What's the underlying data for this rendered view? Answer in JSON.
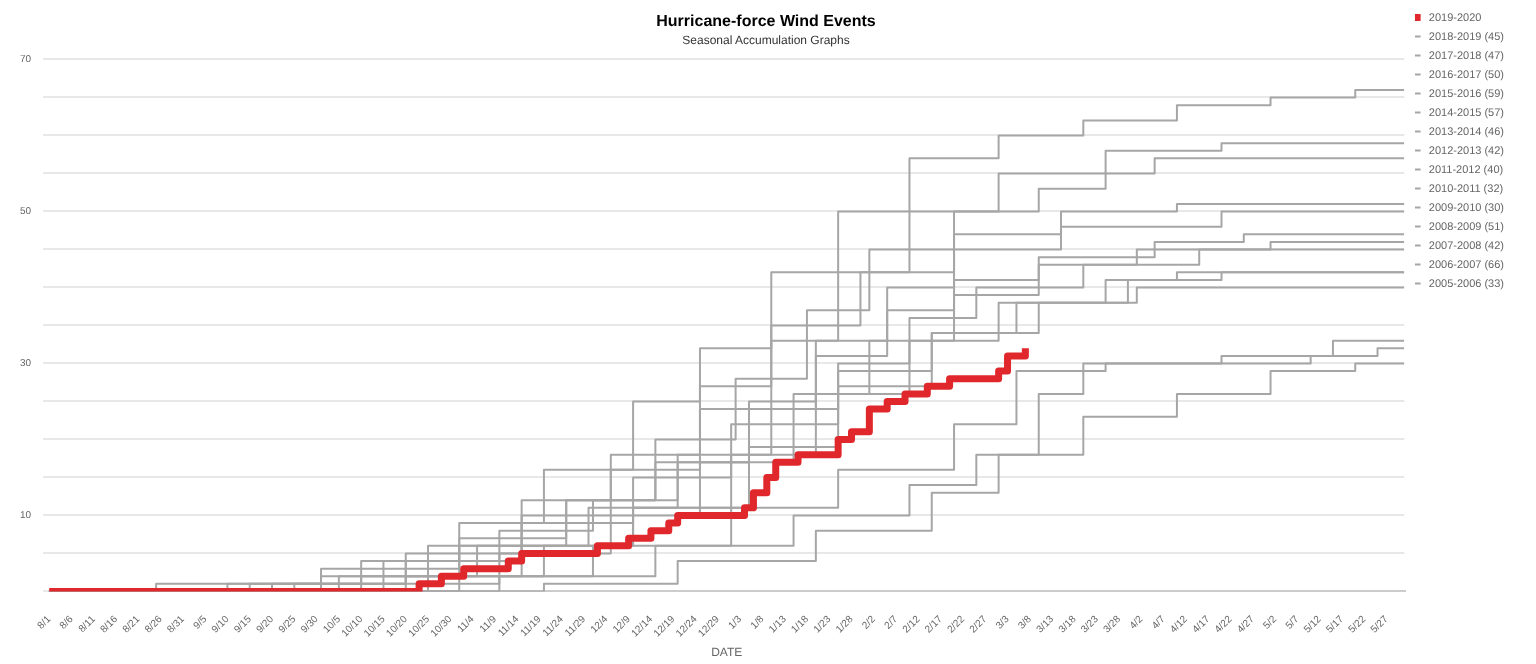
{
  "chart_data": {
    "type": "step",
    "title": "Hurricane-force Wind Events",
    "subtitle": "Seasonal Accumulation Graphs",
    "xlabel": "DATE",
    "legend": "top right",
    "grid": "y",
    "marker": "none",
    "xlim": [
      "2019-08-01",
      "2020-05-31"
    ],
    "xticks": [
      {
        "value": "2019-08-01",
        "label": "8/1"
      },
      {
        "value": "2019-08-06",
        "label": "8/6"
      },
      {
        "value": "2019-08-11",
        "label": "8/11"
      },
      {
        "value": "2019-08-16",
        "label": "8/16"
      },
      {
        "value": "2019-08-21",
        "label": "8/21"
      },
      {
        "value": "2019-08-26",
        "label": "8/26"
      },
      {
        "value": "2019-08-31",
        "label": "8/31"
      },
      {
        "value": "2019-09-05",
        "label": "9/5"
      },
      {
        "value": "2019-09-10",
        "label": "9/10"
      },
      {
        "value": "2019-09-15",
        "label": "9/15"
      },
      {
        "value": "2019-09-20",
        "label": "9/20"
      },
      {
        "value": "2019-09-25",
        "label": "9/25"
      },
      {
        "value": "2019-09-30",
        "label": "9/30"
      },
      {
        "value": "2019-10-05",
        "label": "10/5"
      },
      {
        "value": "2019-10-10",
        "label": "10/10"
      },
      {
        "value": "2019-10-15",
        "label": "10/15"
      },
      {
        "value": "2019-10-20",
        "label": "10/20"
      },
      {
        "value": "2019-10-25",
        "label": "10/25"
      },
      {
        "value": "2019-10-30",
        "label": "10/30"
      },
      {
        "value": "2019-11-04",
        "label": "11/4"
      },
      {
        "value": "2019-11-09",
        "label": "11/9"
      },
      {
        "value": "2019-11-14",
        "label": "11/14"
      },
      {
        "value": "2019-11-19",
        "label": "11/19"
      },
      {
        "value": "2019-11-24",
        "label": "11/24"
      },
      {
        "value": "2019-11-29",
        "label": "11/29"
      },
      {
        "value": "2019-12-04",
        "label": "12/4"
      },
      {
        "value": "2019-12-09",
        "label": "12/9"
      },
      {
        "value": "2019-12-14",
        "label": "12/14"
      },
      {
        "value": "2019-12-19",
        "label": "12/19"
      },
      {
        "value": "2019-12-24",
        "label": "12/24"
      },
      {
        "value": "2019-12-29",
        "label": "12/29"
      },
      {
        "value": "2020-01-03",
        "label": "1/3"
      },
      {
        "value": "2020-01-08",
        "label": "1/8"
      },
      {
        "value": "2020-01-13",
        "label": "1/13"
      },
      {
        "value": "2020-01-18",
        "label": "1/18"
      },
      {
        "value": "2020-01-23",
        "label": "1/23"
      },
      {
        "value": "2020-01-28",
        "label": "1/28"
      },
      {
        "value": "2020-02-02",
        "label": "2/2"
      },
      {
        "value": "2020-02-07",
        "label": "2/7"
      },
      {
        "value": "2020-02-12",
        "label": "2/12"
      },
      {
        "value": "2020-02-17",
        "label": "2/17"
      },
      {
        "value": "2020-02-22",
        "label": "2/22"
      },
      {
        "value": "2020-02-27",
        "label": "2/27"
      },
      {
        "value": "2020-03-03",
        "label": "3/3"
      },
      {
        "value": "2020-03-08",
        "label": "3/8"
      },
      {
        "value": "2020-03-13",
        "label": "3/13"
      },
      {
        "value": "2020-03-18",
        "label": "3/18"
      },
      {
        "value": "2020-03-23",
        "label": "3/23"
      },
      {
        "value": "2020-03-28",
        "label": "3/28"
      },
      {
        "value": "2020-04-02",
        "label": "4/2"
      },
      {
        "value": "2020-04-07",
        "label": "4/7"
      },
      {
        "value": "2020-04-12",
        "label": "4/12"
      },
      {
        "value": "2020-04-17",
        "label": "4/17"
      },
      {
        "value": "2020-04-22",
        "label": "4/22"
      },
      {
        "value": "2020-04-27",
        "label": "4/27"
      },
      {
        "value": "2020-05-02",
        "label": "5/2"
      },
      {
        "value": "2020-05-07",
        "label": "5/7"
      },
      {
        "value": "2020-05-12",
        "label": "5/12"
      },
      {
        "value": "2020-05-17",
        "label": "5/17"
      },
      {
        "value": "2020-05-22",
        "label": "5/22"
      },
      {
        "value": "2020-05-27",
        "label": "5/27"
      }
    ],
    "ylim": [
      0,
      70
    ],
    "yticks": [
      {
        "value": 0,
        "label": null
      },
      {
        "value": 5,
        "label": null
      },
      10,
      {
        "value": 15,
        "label": null
      },
      {
        "value": 20,
        "label": null
      },
      {
        "value": 25,
        "label": null
      },
      30,
      {
        "value": 35,
        "label": null
      },
      {
        "value": 40,
        "label": null
      },
      {
        "value": 45,
        "label": null
      },
      50,
      {
        "value": 55,
        "label": null
      },
      {
        "value": 60,
        "label": null
      },
      {
        "value": 65,
        "label": null
      },
      70
    ],
    "series": [
      {
        "name": "2019-2020",
        "color": "#e0282c",
        "x": [
          "2019-08-01",
          "2019-10-23",
          "2019-10-28",
          "2019-11-02",
          "2019-11-12",
          "2019-11-15",
          "2019-12-02",
          "2019-12-09",
          "2019-12-14",
          "2019-12-18",
          "2019-12-20",
          "2020-01-04",
          "2020-01-06",
          "2020-01-09",
          "2020-01-11",
          "2020-01-16",
          "2020-01-25",
          "2020-01-28",
          "2020-02-01",
          "2020-02-05",
          "2020-02-09",
          "2020-02-14",
          "2020-02-19",
          "2020-03-01",
          "2020-03-03",
          "2020-03-07"
        ],
        "values": [
          0,
          1,
          2,
          3,
          4,
          5,
          6,
          7,
          8,
          9,
          10,
          11,
          13,
          15,
          17,
          18,
          20,
          21,
          24,
          25,
          26,
          27,
          28,
          29,
          31,
          32
        ]
      },
      {
        "name": "2018-2019 (45)",
        "color": "#a6a6a6",
        "x": [
          "2019-08-01",
          "2019-09-20",
          "2019-10-15",
          "2019-11-10",
          "2019-12-01",
          "2019-12-20",
          "2020-01-10",
          "2020-01-25",
          "2020-02-10",
          "2020-02-25",
          "2020-03-20",
          "2020-04-15",
          "2020-05-31"
        ],
        "values": [
          0,
          1,
          4,
          8,
          12,
          18,
          24,
          30,
          36,
          40,
          43,
          45,
          45
        ]
      },
      {
        "name": "2017-2018 (47)",
        "color": "#a6a6a6",
        "x": [
          "2019-08-01",
          "2019-08-25",
          "2019-10-01",
          "2019-11-01",
          "2019-11-25",
          "2019-12-15",
          "2020-01-05",
          "2020-01-20",
          "2020-02-05",
          "2020-02-20",
          "2020-03-10",
          "2020-04-05",
          "2020-04-25",
          "2020-05-31"
        ],
        "values": [
          0,
          1,
          3,
          7,
          12,
          17,
          25,
          31,
          37,
          41,
          44,
          46,
          47,
          47
        ]
      },
      {
        "name": "2016-2017 (50)",
        "color": "#a6a6a6",
        "x": [
          "2019-08-01",
          "2019-10-10",
          "2019-11-05",
          "2019-11-30",
          "2019-12-20",
          "2020-01-05",
          "2020-01-20",
          "2020-02-05",
          "2020-02-20",
          "2020-03-15",
          "2020-04-20",
          "2020-05-31"
        ],
        "values": [
          0,
          2,
          6,
          11,
          17,
          24,
          33,
          40,
          45,
          48,
          50,
          50
        ]
      },
      {
        "name": "2015-2016 (59)",
        "color": "#a6a6a6",
        "x": [
          "2019-08-01",
          "2019-09-10",
          "2019-10-20",
          "2019-11-15",
          "2019-12-05",
          "2019-12-25",
          "2020-01-10",
          "2020-01-25",
          "2020-02-10",
          "2020-03-01",
          "2020-03-25",
          "2020-04-20",
          "2020-05-31"
        ],
        "values": [
          0,
          1,
          5,
          10,
          16,
          24,
          33,
          42,
          50,
          55,
          58,
          59,
          59
        ]
      },
      {
        "name": "2014-2015 (57)",
        "color": "#a6a6a6",
        "x": [
          "2019-08-01",
          "2019-10-05",
          "2019-11-01",
          "2019-11-25",
          "2019-12-15",
          "2020-01-02",
          "2020-01-18",
          "2020-02-01",
          "2020-02-20",
          "2020-03-10",
          "2020-03-25",
          "2020-04-05",
          "2020-05-31"
        ],
        "values": [
          0,
          2,
          6,
          12,
          20,
          28,
          37,
          45,
          50,
          53,
          55,
          57,
          57
        ]
      },
      {
        "name": "2013-2014 (46)",
        "color": "#a6a6a6",
        "x": [
          "2019-08-01",
          "2019-10-15",
          "2019-11-10",
          "2019-12-05",
          "2019-12-25",
          "2020-01-15",
          "2020-02-01",
          "2020-02-20",
          "2020-03-10",
          "2020-04-01",
          "2020-05-01",
          "2020-05-31"
        ],
        "values": [
          0,
          1,
          5,
          10,
          17,
          26,
          33,
          39,
          43,
          45,
          46,
          46
        ]
      },
      {
        "name": "2012-2013 (42)",
        "color": "#a6a6a6",
        "x": [
          "2019-08-01",
          "2019-10-25",
          "2019-11-20",
          "2019-12-10",
          "2020-01-01",
          "2020-01-20",
          "2020-02-10",
          "2020-03-01",
          "2020-03-25",
          "2020-04-10",
          "2020-05-31"
        ],
        "values": [
          0,
          2,
          6,
          11,
          18,
          26,
          33,
          38,
          41,
          42,
          42
        ]
      },
      {
        "name": "2011-2012 (40)",
        "color": "#a6a6a6",
        "x": [
          "2019-08-01",
          "2019-09-25",
          "2019-10-20",
          "2019-11-15",
          "2019-12-10",
          "2020-01-01",
          "2020-01-25",
          "2020-02-15",
          "2020-03-10",
          "2020-04-01",
          "2020-05-31"
        ],
        "values": [
          0,
          1,
          4,
          9,
          15,
          22,
          29,
          34,
          38,
          40,
          40
        ]
      },
      {
        "name": "2010-2011 (32)",
        "color": "#a6a6a6",
        "x": [
          "2019-08-01",
          "2019-11-01",
          "2019-12-01",
          "2020-01-01",
          "2020-01-25",
          "2020-02-20",
          "2020-03-05",
          "2020-03-25",
          "2020-05-10",
          "2020-05-25",
          "2020-05-31"
        ],
        "values": [
          0,
          2,
          6,
          11,
          16,
          22,
          29,
          30,
          31,
          32,
          32
        ]
      },
      {
        "name": "2009-2010 (30)",
        "color": "#a6a6a6",
        "x": [
          "2019-08-01",
          "2019-11-20",
          "2019-12-20",
          "2020-01-20",
          "2020-02-15",
          "2020-03-01",
          "2020-03-20",
          "2020-04-10",
          "2020-05-01",
          "2020-05-20",
          "2020-05-31"
        ],
        "values": [
          0,
          1,
          4,
          8,
          13,
          18,
          23,
          26,
          29,
          30,
          30
        ]
      },
      {
        "name": "2008-2009 (51)",
        "color": "#a6a6a6",
        "x": [
          "2019-08-01",
          "2019-10-01",
          "2019-10-25",
          "2019-11-15",
          "2019-12-05",
          "2019-12-25",
          "2020-01-10",
          "2020-01-30",
          "2020-02-20",
          "2020-03-15",
          "2020-04-10",
          "2020-05-31"
        ],
        "values": [
          0,
          2,
          6,
          12,
          18,
          27,
          35,
          42,
          47,
          50,
          51,
          51
        ]
      },
      {
        "name": "2007-2008 (42)",
        "color": "#a6a6a6",
        "x": [
          "2019-08-01",
          "2019-10-20",
          "2019-11-15",
          "2019-12-10",
          "2020-01-05",
          "2020-01-25",
          "2020-02-15",
          "2020-03-05",
          "2020-03-30",
          "2020-04-20",
          "2020-05-31"
        ],
        "values": [
          0,
          2,
          6,
          11,
          19,
          27,
          34,
          38,
          41,
          42,
          42
        ]
      },
      {
        "name": "2006-2007 (66)",
        "color": "#a6a6a6",
        "x": [
          "2019-08-01",
          "2019-09-15",
          "2019-10-10",
          "2019-11-01",
          "2019-11-20",
          "2019-12-10",
          "2019-12-25",
          "2020-01-10",
          "2020-01-25",
          "2020-02-10",
          "2020-03-01",
          "2020-03-20",
          "2020-04-10",
          "2020-05-01",
          "2020-05-20",
          "2020-05-31"
        ],
        "values": [
          0,
          1,
          4,
          9,
          16,
          25,
          32,
          42,
          50,
          57,
          60,
          62,
          64,
          65,
          66,
          66
        ]
      },
      {
        "name": "2005-2006 (33)",
        "color": "#a6a6a6",
        "x": [
          "2019-08-01",
          "2019-11-10",
          "2019-12-15",
          "2020-01-15",
          "2020-02-10",
          "2020-02-25",
          "2020-03-10",
          "2020-03-20",
          "2020-04-20",
          "2020-05-15",
          "2020-05-31"
        ],
        "values": [
          0,
          2,
          6,
          10,
          14,
          18,
          26,
          30,
          31,
          33,
          33
        ]
      }
    ]
  }
}
